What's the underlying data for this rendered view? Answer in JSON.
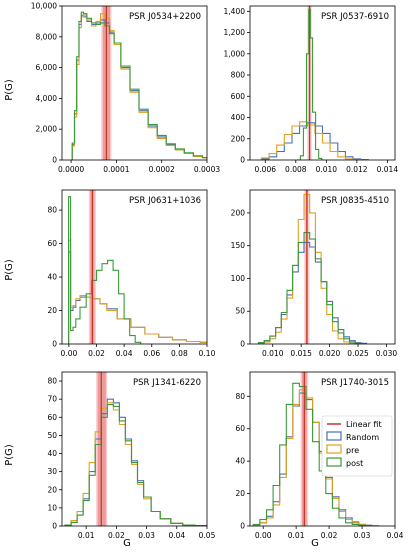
{
  "figure": {
    "ylabel": "P(G)",
    "xlabel": "G",
    "legend": {
      "placement": "inside bottom-right of last panel",
      "entries": [
        {
          "label": "Linear fit",
          "color": "#c0392b",
          "kind": "line"
        },
        {
          "label": "Random",
          "color": "#4a6fb5",
          "kind": "box"
        },
        {
          "label": "pre",
          "color": "#e0a020",
          "kind": "box"
        },
        {
          "label": "post",
          "color": "#3a9a3a",
          "kind": "box"
        }
      ]
    },
    "colors": {
      "random": "#4a6fb5",
      "pre": "#e0a020",
      "post": "#3a9a3a",
      "fit": "#c0392b",
      "band": "#f2a6a6",
      "band_dark": "#e06666"
    }
  },
  "chart_data": [
    {
      "type": "line",
      "title": "PSR J0534+2200",
      "xlim": [
        -2e-05,
        0.0003
      ],
      "ylim": [
        0,
        10000
      ],
      "xticks": [
        0,
        0.0001,
        0.0002,
        0.0003
      ],
      "xtick_labels": [
        "0.0000",
        "0.0001",
        "0.0002",
        "0.0003"
      ],
      "yticks": [
        0,
        2000,
        4000,
        6000,
        8000,
        10000
      ],
      "ytick_labels": [
        "0",
        "2,000",
        "4,000",
        "6,000",
        "8,000",
        "10,000"
      ],
      "fit": {
        "value": 7.8e-05,
        "band": [
          7e-05,
          8.6e-05
        ]
      },
      "series": [
        {
          "key": "random",
          "x": [
            5e-06,
            1e-05,
            1.5e-05,
            2e-05,
            2.5e-05,
            3e-05,
            4e-05,
            5e-05,
            6e-05,
            7e-05,
            8e-05,
            9e-05,
            0.0001,
            0.00012,
            0.00014,
            0.00016,
            0.00018,
            0.0002,
            0.00022,
            0.00024,
            0.00026,
            0.00028,
            0.0003
          ],
          "y": [
            1000,
            3000,
            6500,
            8800,
            9400,
            9300,
            9000,
            8800,
            8900,
            9100,
            8900,
            8300,
            7600,
            6000,
            4500,
            3200,
            2200,
            1500,
            1000,
            700,
            450,
            250,
            150
          ]
        },
        {
          "key": "pre",
          "x": [
            5e-06,
            1e-05,
            1.5e-05,
            2e-05,
            2.5e-05,
            3e-05,
            4e-05,
            5e-05,
            6e-05,
            7e-05,
            8e-05,
            9e-05,
            0.0001,
            0.00012,
            0.00014,
            0.00016,
            0.00018,
            0.0002,
            0.00022,
            0.00024,
            0.00026,
            0.00028,
            0.0003
          ],
          "y": [
            900,
            2800,
            6200,
            8600,
            9300,
            9400,
            9100,
            8700,
            9000,
            9500,
            9200,
            8400,
            7500,
            5900,
            4400,
            3100,
            2100,
            1400,
            950,
            650,
            420,
            230,
            140
          ]
        },
        {
          "key": "post",
          "x": [
            5e-06,
            1e-05,
            1.5e-05,
            2e-05,
            2.5e-05,
            3e-05,
            4e-05,
            5e-05,
            6e-05,
            7e-05,
            8e-05,
            9e-05,
            0.0001,
            0.00012,
            0.00014,
            0.00016,
            0.00018,
            0.0002,
            0.00022,
            0.00024,
            0.00026,
            0.00028,
            0.0003
          ],
          "y": [
            1100,
            3200,
            6700,
            9000,
            9600,
            9500,
            9200,
            8900,
            8800,
            8900,
            8700,
            8200,
            7600,
            6100,
            4600,
            3300,
            2300,
            1600,
            1050,
            720,
            470,
            270,
            160
          ]
        }
      ]
    },
    {
      "type": "line",
      "title": "PSR J0537-6910",
      "xlim": [
        0.005,
        0.0145
      ],
      "ylim": [
        0,
        1450
      ],
      "xticks": [
        0.006,
        0.008,
        0.01,
        0.012,
        0.014
      ],
      "xtick_labels": [
        "0.006",
        "0.008",
        "0.010",
        "0.012",
        "0.014"
      ],
      "yticks": [
        0,
        200,
        400,
        600,
        800,
        1000,
        1200,
        1400
      ],
      "ytick_labels": [
        "0",
        "200",
        "400",
        "600",
        "800",
        "1,000",
        "1,200",
        "1,400"
      ],
      "fit": {
        "value": 0.0089,
        "band": [
          0.00886,
          0.00894
        ]
      },
      "series": [
        {
          "key": "random",
          "x": [
            0.006,
            0.0065,
            0.007,
            0.0075,
            0.008,
            0.0085,
            0.009,
            0.0095,
            0.01,
            0.0105,
            0.011,
            0.0115,
            0.012,
            0.0125
          ],
          "y": [
            10,
            30,
            80,
            160,
            250,
            320,
            350,
            320,
            250,
            160,
            80,
            30,
            10,
            3
          ]
        },
        {
          "key": "pre",
          "x": [
            0.006,
            0.0065,
            0.007,
            0.0075,
            0.008,
            0.0085,
            0.009,
            0.0095,
            0.01,
            0.0105,
            0.011,
            0.0115,
            0.012
          ],
          "y": [
            20,
            60,
            140,
            240,
            320,
            360,
            330,
            250,
            160,
            80,
            30,
            10,
            3
          ]
        },
        {
          "key": "post",
          "x": [
            0.0082,
            0.0084,
            0.0086,
            0.0088,
            0.0089,
            0.009,
            0.0092,
            0.0094,
            0.0096,
            0.0098
          ],
          "y": [
            0,
            40,
            300,
            1000,
            1420,
            1150,
            450,
            100,
            15,
            0
          ]
        }
      ]
    },
    {
      "type": "line",
      "title": "PSR J0631+1036",
      "xlim": [
        -0.005,
        0.1
      ],
      "ylim": [
        0,
        92
      ],
      "xticks": [
        0,
        0.02,
        0.04,
        0.06,
        0.08,
        0.1
      ],
      "xtick_labels": [
        "0.00",
        "0.02",
        "0.04",
        "0.06",
        "0.08",
        "0.10"
      ],
      "yticks": [
        0,
        20,
        40,
        60,
        80
      ],
      "ytick_labels": [
        "0",
        "20",
        "40",
        "60",
        "80"
      ],
      "fit": {
        "value": 0.017,
        "band": [
          0.0155,
          0.0185
        ]
      },
      "series": [
        {
          "key": "random",
          "x": [
            0.0005,
            0.002,
            0.004,
            0.006,
            0.01,
            0.015,
            0.02,
            0.025,
            0.03,
            0.04,
            0.05,
            0.06,
            0.07,
            0.08,
            0.09,
            0.1
          ],
          "y": [
            55,
            20,
            22,
            26,
            28,
            28,
            27,
            24,
            21,
            15,
            10,
            6,
            4,
            2.5,
            1.5,
            1
          ]
        },
        {
          "key": "pre",
          "x": [
            0.0005,
            0.002,
            0.004,
            0.006,
            0.01,
            0.015,
            0.02,
            0.025,
            0.03,
            0.04,
            0.05,
            0.06,
            0.07,
            0.08,
            0.09,
            0.1
          ],
          "y": [
            62,
            22,
            23,
            27,
            29,
            28,
            27,
            24,
            20,
            15,
            10,
            6,
            4,
            2.5,
            1.5,
            1
          ]
        },
        {
          "key": "post",
          "x": [
            0.0005,
            0.002,
            0.004,
            0.006,
            0.01,
            0.015,
            0.018,
            0.022,
            0.026,
            0.03,
            0.034,
            0.038,
            0.042,
            0.046,
            0.05
          ],
          "y": [
            88,
            8,
            10,
            15,
            22,
            30,
            38,
            44,
            48,
            50,
            44,
            30,
            15,
            5,
            1
          ]
        }
      ]
    },
    {
      "type": "line",
      "title": "PSR J0835-4510",
      "xlim": [
        0.006,
        0.0315
      ],
      "ylim": [
        0,
        235
      ],
      "xticks": [
        0.01,
        0.015,
        0.02,
        0.025,
        0.03
      ],
      "xtick_labels": [
        "0.010",
        "0.015",
        "0.020",
        "0.025",
        "0.030"
      ],
      "yticks": [
        0,
        50,
        100,
        150,
        200
      ],
      "ytick_labels": [
        "0",
        "50",
        "100",
        "150",
        "200"
      ],
      "fit": {
        "value": 0.016,
        "band": [
          0.0158,
          0.0162
        ]
      },
      "series": [
        {
          "key": "random",
          "x": [
            0.008,
            0.009,
            0.01,
            0.011,
            0.012,
            0.013,
            0.014,
            0.015,
            0.016,
            0.017,
            0.018,
            0.019,
            0.02,
            0.021,
            0.022,
            0.023,
            0.024,
            0.025,
            0.026
          ],
          "y": [
            2,
            5,
            12,
            25,
            45,
            75,
            110,
            140,
            155,
            148,
            125,
            95,
            65,
            40,
            22,
            11,
            5,
            2,
            1
          ]
        },
        {
          "key": "pre",
          "x": [
            0.008,
            0.009,
            0.01,
            0.011,
            0.012,
            0.013,
            0.014,
            0.015,
            0.016,
            0.017,
            0.018,
            0.019,
            0.02,
            0.021,
            0.022,
            0.023,
            0.024
          ],
          "y": [
            1,
            3,
            8,
            18,
            38,
            70,
            120,
            190,
            228,
            200,
            140,
            85,
            45,
            20,
            8,
            3,
            1
          ]
        },
        {
          "key": "post",
          "x": [
            0.008,
            0.009,
            0.01,
            0.011,
            0.012,
            0.013,
            0.014,
            0.015,
            0.016,
            0.017,
            0.018,
            0.019,
            0.02,
            0.021,
            0.022,
            0.023,
            0.024,
            0.025
          ],
          "y": [
            2,
            5,
            12,
            25,
            48,
            82,
            120,
            155,
            170,
            160,
            130,
            95,
            60,
            34,
            17,
            8,
            3,
            1
          ]
        }
      ]
    },
    {
      "type": "line",
      "title": "PSR J1341-6220",
      "xlim": [
        0.002,
        0.05
      ],
      "ylim": [
        0,
        85
      ],
      "xticks": [
        0.01,
        0.02,
        0.03,
        0.04,
        0.05
      ],
      "xtick_labels": [
        "0.01",
        "0.02",
        "0.03",
        "0.04",
        "0.05"
      ],
      "yticks": [
        0,
        10,
        20,
        30,
        40,
        50,
        60,
        70,
        80
      ],
      "ytick_labels": [
        "0",
        "10",
        "20",
        "30",
        "40",
        "50",
        "60",
        "70",
        "80"
      ],
      "fit": {
        "value": 0.015,
        "band": [
          0.0138,
          0.0165
        ]
      },
      "series": [
        {
          "key": "random",
          "x": [
            0.004,
            0.006,
            0.008,
            0.01,
            0.012,
            0.014,
            0.016,
            0.018,
            0.02,
            0.022,
            0.024,
            0.026,
            0.028,
            0.03,
            0.033,
            0.036,
            0.04,
            0.044,
            0.048
          ],
          "y": [
            0.5,
            2,
            6,
            15,
            30,
            48,
            62,
            70,
            68,
            60,
            48,
            36,
            25,
            16,
            8,
            4,
            1.5,
            0.5,
            0.2
          ]
        },
        {
          "key": "pre",
          "x": [
            0.004,
            0.006,
            0.008,
            0.01,
            0.012,
            0.014,
            0.016,
            0.018,
            0.02,
            0.022,
            0.024,
            0.026,
            0.028,
            0.03,
            0.033,
            0.036,
            0.04,
            0.044,
            0.048
          ],
          "y": [
            0.5,
            3,
            8,
            18,
            35,
            52,
            65,
            68,
            64,
            56,
            45,
            34,
            23,
            15,
            8,
            4,
            1.5,
            0.5,
            0.2
          ]
        },
        {
          "key": "post",
          "x": [
            0.004,
            0.006,
            0.008,
            0.01,
            0.012,
            0.014,
            0.016,
            0.018,
            0.02,
            0.022,
            0.024,
            0.026,
            0.028,
            0.03,
            0.033,
            0.036,
            0.04,
            0.044,
            0.048
          ],
          "y": [
            0.5,
            2,
            6,
            14,
            28,
            45,
            60,
            67,
            66,
            58,
            47,
            35,
            24,
            16,
            8,
            4,
            1.5,
            0.5,
            0.2
          ]
        }
      ]
    },
    {
      "type": "line",
      "title": "PSR J1740-3015",
      "xlim": [
        -0.004,
        0.04
      ],
      "ylim": [
        0,
        95
      ],
      "xticks": [
        0,
        0.01,
        0.02,
        0.03,
        0.04
      ],
      "xtick_labels": [
        "0.00",
        "0.01",
        "0.02",
        "0.03",
        "0.04"
      ],
      "yticks": [
        0,
        20,
        40,
        60,
        80
      ],
      "ytick_labels": [
        "0",
        "20",
        "40",
        "60",
        "80"
      ],
      "fit": {
        "value": 0.0125,
        "band": [
          0.0118,
          0.0132
        ]
      },
      "series": [
        {
          "key": "random",
          "x": [
            -0.002,
            0,
            0.002,
            0.004,
            0.006,
            0.008,
            0.01,
            0.012,
            0.014,
            0.016,
            0.018,
            0.02,
            0.022,
            0.024,
            0.026,
            0.028,
            0.03,
            0.032,
            0.034
          ],
          "y": [
            0.5,
            2,
            6,
            15,
            32,
            55,
            74,
            82,
            78,
            64,
            46,
            30,
            18,
            10,
            5,
            2.5,
            1,
            0.5,
            0.2
          ]
        },
        {
          "key": "pre",
          "x": [
            -0.002,
            0,
            0.002,
            0.004,
            0.006,
            0.008,
            0.01,
            0.012,
            0.014,
            0.016,
            0.018,
            0.02,
            0.022,
            0.024,
            0.026,
            0.028,
            0.03,
            0.032,
            0.034
          ],
          "y": [
            0.5,
            2,
            5,
            13,
            30,
            54,
            75,
            84,
            79,
            64,
            45,
            29,
            17,
            9,
            4,
            2,
            1,
            0.4,
            0.2
          ]
        },
        {
          "key": "post",
          "x": [
            -0.002,
            0,
            0.002,
            0.004,
            0.006,
            0.008,
            0.01,
            0.012,
            0.014,
            0.016,
            0.018,
            0.02,
            0.022,
            0.024,
            0.026,
            0.028,
            0.03,
            0.032
          ],
          "y": [
            1,
            4,
            10,
            25,
            50,
            75,
            88,
            86,
            72,
            52,
            34,
            20,
            11,
            5,
            2,
            1,
            0.5,
            0.2
          ]
        }
      ]
    }
  ]
}
